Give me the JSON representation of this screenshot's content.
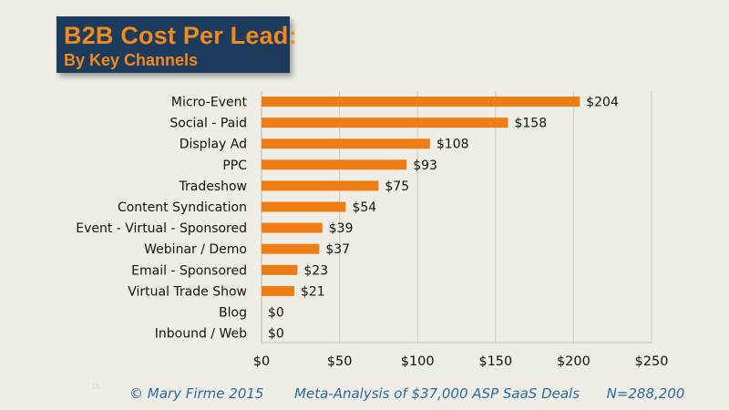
{
  "title": {
    "main": "B2B Cost Per Lead:",
    "sub": "By Key Channels"
  },
  "footer": {
    "copyright": "© Mary Firme  2015",
    "analysis": "Meta-Analysis of $37,000 ASP SaaS Deals",
    "sample": "N=288,200"
  },
  "slide_number": "16",
  "colors": {
    "bar": "#ee7d16",
    "title_bg": "#1d3b5c",
    "title_text": "#f08a1e",
    "footer_text": "#2e6aa3",
    "background": "#efeee6"
  },
  "chart_data": {
    "type": "bar",
    "orientation": "horizontal",
    "categories": [
      "Micro-Event",
      "Social - Paid",
      "Display Ad",
      "PPC",
      "Tradeshow",
      "Content Syndication",
      "Event - Virtual - Sponsored",
      "Webinar / Demo",
      "Email - Sponsored",
      "Virtual Trade Show",
      "Blog",
      "Inbound / Web"
    ],
    "values": [
      204,
      158,
      108,
      93,
      75,
      54,
      39,
      37,
      23,
      21,
      0,
      0
    ],
    "value_labels": [
      "$204",
      "$158",
      "$108",
      "$93",
      "$75",
      "$54",
      "$39",
      "$37",
      "$23",
      "$21",
      "$0",
      "$0"
    ],
    "xlim": [
      0,
      250
    ],
    "xticks": [
      0,
      50,
      100,
      150,
      200,
      250
    ],
    "xtick_labels": [
      "$0",
      "$50",
      "$100",
      "$150",
      "$200",
      "$250"
    ],
    "grid": true,
    "legend": "none"
  }
}
